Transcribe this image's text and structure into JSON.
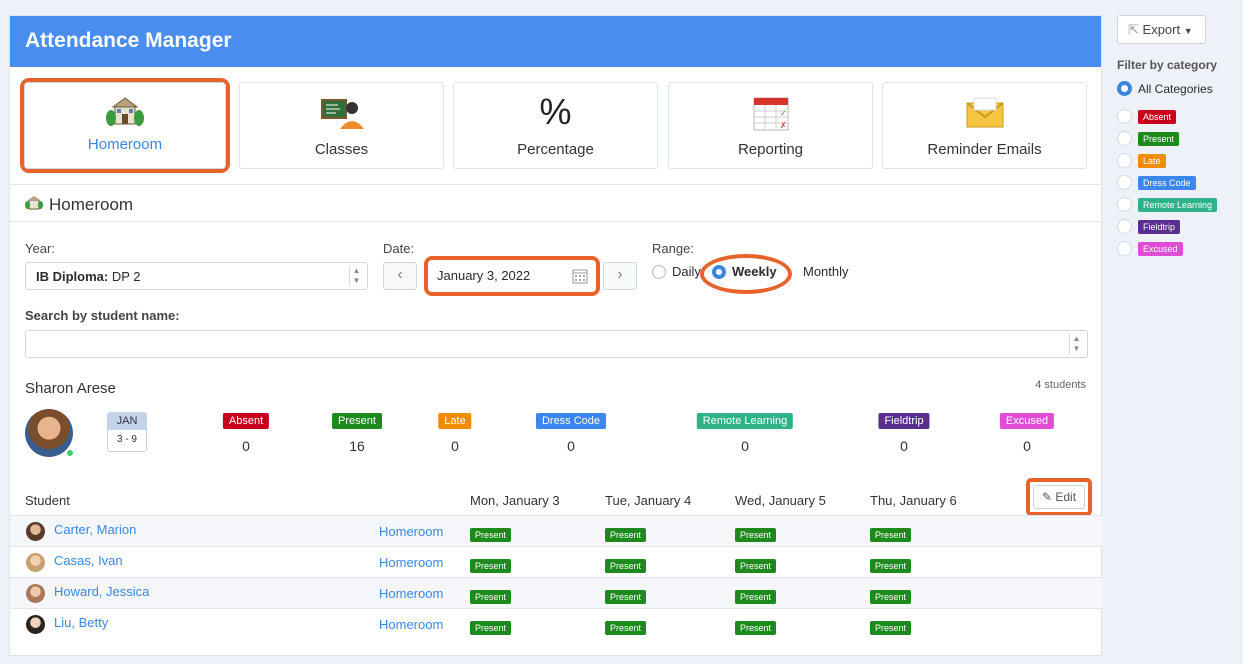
{
  "app": {
    "title": "Attendance Manager"
  },
  "tiles": [
    {
      "label": "Homeroom",
      "icon": "school-building-icon"
    },
    {
      "label": "Classes",
      "icon": "teacher-board-icon"
    },
    {
      "label": "Percentage",
      "icon": "percent-icon",
      "glyph": "%"
    },
    {
      "label": "Reporting",
      "icon": "spreadsheet-calendar-icon"
    },
    {
      "label": "Reminder Emails",
      "icon": "envelope-icon"
    }
  ],
  "section": {
    "title": "Homeroom"
  },
  "filters": {
    "year_label": "Year:",
    "year_value_bold": "IB Diploma:",
    "year_value_rest": " DP 2",
    "date_label": "Date:",
    "date_value": "January 3, 2022",
    "range_label": "Range:",
    "range_options": [
      "Daily",
      "Weekly",
      "Monthly"
    ],
    "range_selected": "Weekly",
    "search_label": "Search by student name:",
    "search_value": ""
  },
  "summary": {
    "teacher": "Sharon Arese",
    "count": "4 students",
    "cal_month": "JAN",
    "cal_range": "3 - 9",
    "stats": [
      {
        "label": "Absent",
        "value": "0",
        "color": "#c8001e"
      },
      {
        "label": "Present",
        "value": "16",
        "color": "#1e8a1e"
      },
      {
        "label": "Late",
        "value": "0",
        "color": "#f08c00"
      },
      {
        "label": "Dress Code",
        "value": "0",
        "color": "#3c86f0"
      },
      {
        "label": "Remote Learning",
        "value": "0",
        "color": "#2fb28a"
      },
      {
        "label": "Fieldtrip",
        "value": "0",
        "color": "#5b2d8e"
      },
      {
        "label": "Excused",
        "value": "0",
        "color": "#e04cd6"
      }
    ]
  },
  "table": {
    "headers": [
      "Student",
      "Mon, January 3",
      "Tue, January 4",
      "Wed, January 5",
      "Thu, January 6"
    ],
    "edit_label": "Edit",
    "rows": [
      {
        "name": "Carter, Marion",
        "room": "Homeroom",
        "days": [
          "Present",
          "Present",
          "Present",
          "Present"
        ]
      },
      {
        "name": "Casas, Ivan",
        "room": "Homeroom",
        "days": [
          "Present",
          "Present",
          "Present",
          "Present"
        ]
      },
      {
        "name": "Howard, Jessica",
        "room": "Homeroom",
        "days": [
          "Present",
          "Present",
          "Present",
          "Present"
        ]
      },
      {
        "name": "Liu, Betty",
        "room": "Homeroom",
        "days": [
          "Present",
          "Present",
          "Present",
          "Present"
        ]
      }
    ]
  },
  "sidebar": {
    "export_label": "Export",
    "filter_title": "Filter by category",
    "all_label": "All Categories",
    "categories": [
      {
        "label": "Absent",
        "color": "#c8001e"
      },
      {
        "label": "Present",
        "color": "#1e8a1e"
      },
      {
        "label": "Late",
        "color": "#f08c00"
      },
      {
        "label": "Dress Code",
        "color": "#3c86f0"
      },
      {
        "label": "Remote Learning",
        "color": "#2fb28a"
      },
      {
        "label": "Fieldtrip",
        "color": "#5b2d8e"
      },
      {
        "label": "Excused",
        "color": "#e04cd6"
      }
    ]
  }
}
